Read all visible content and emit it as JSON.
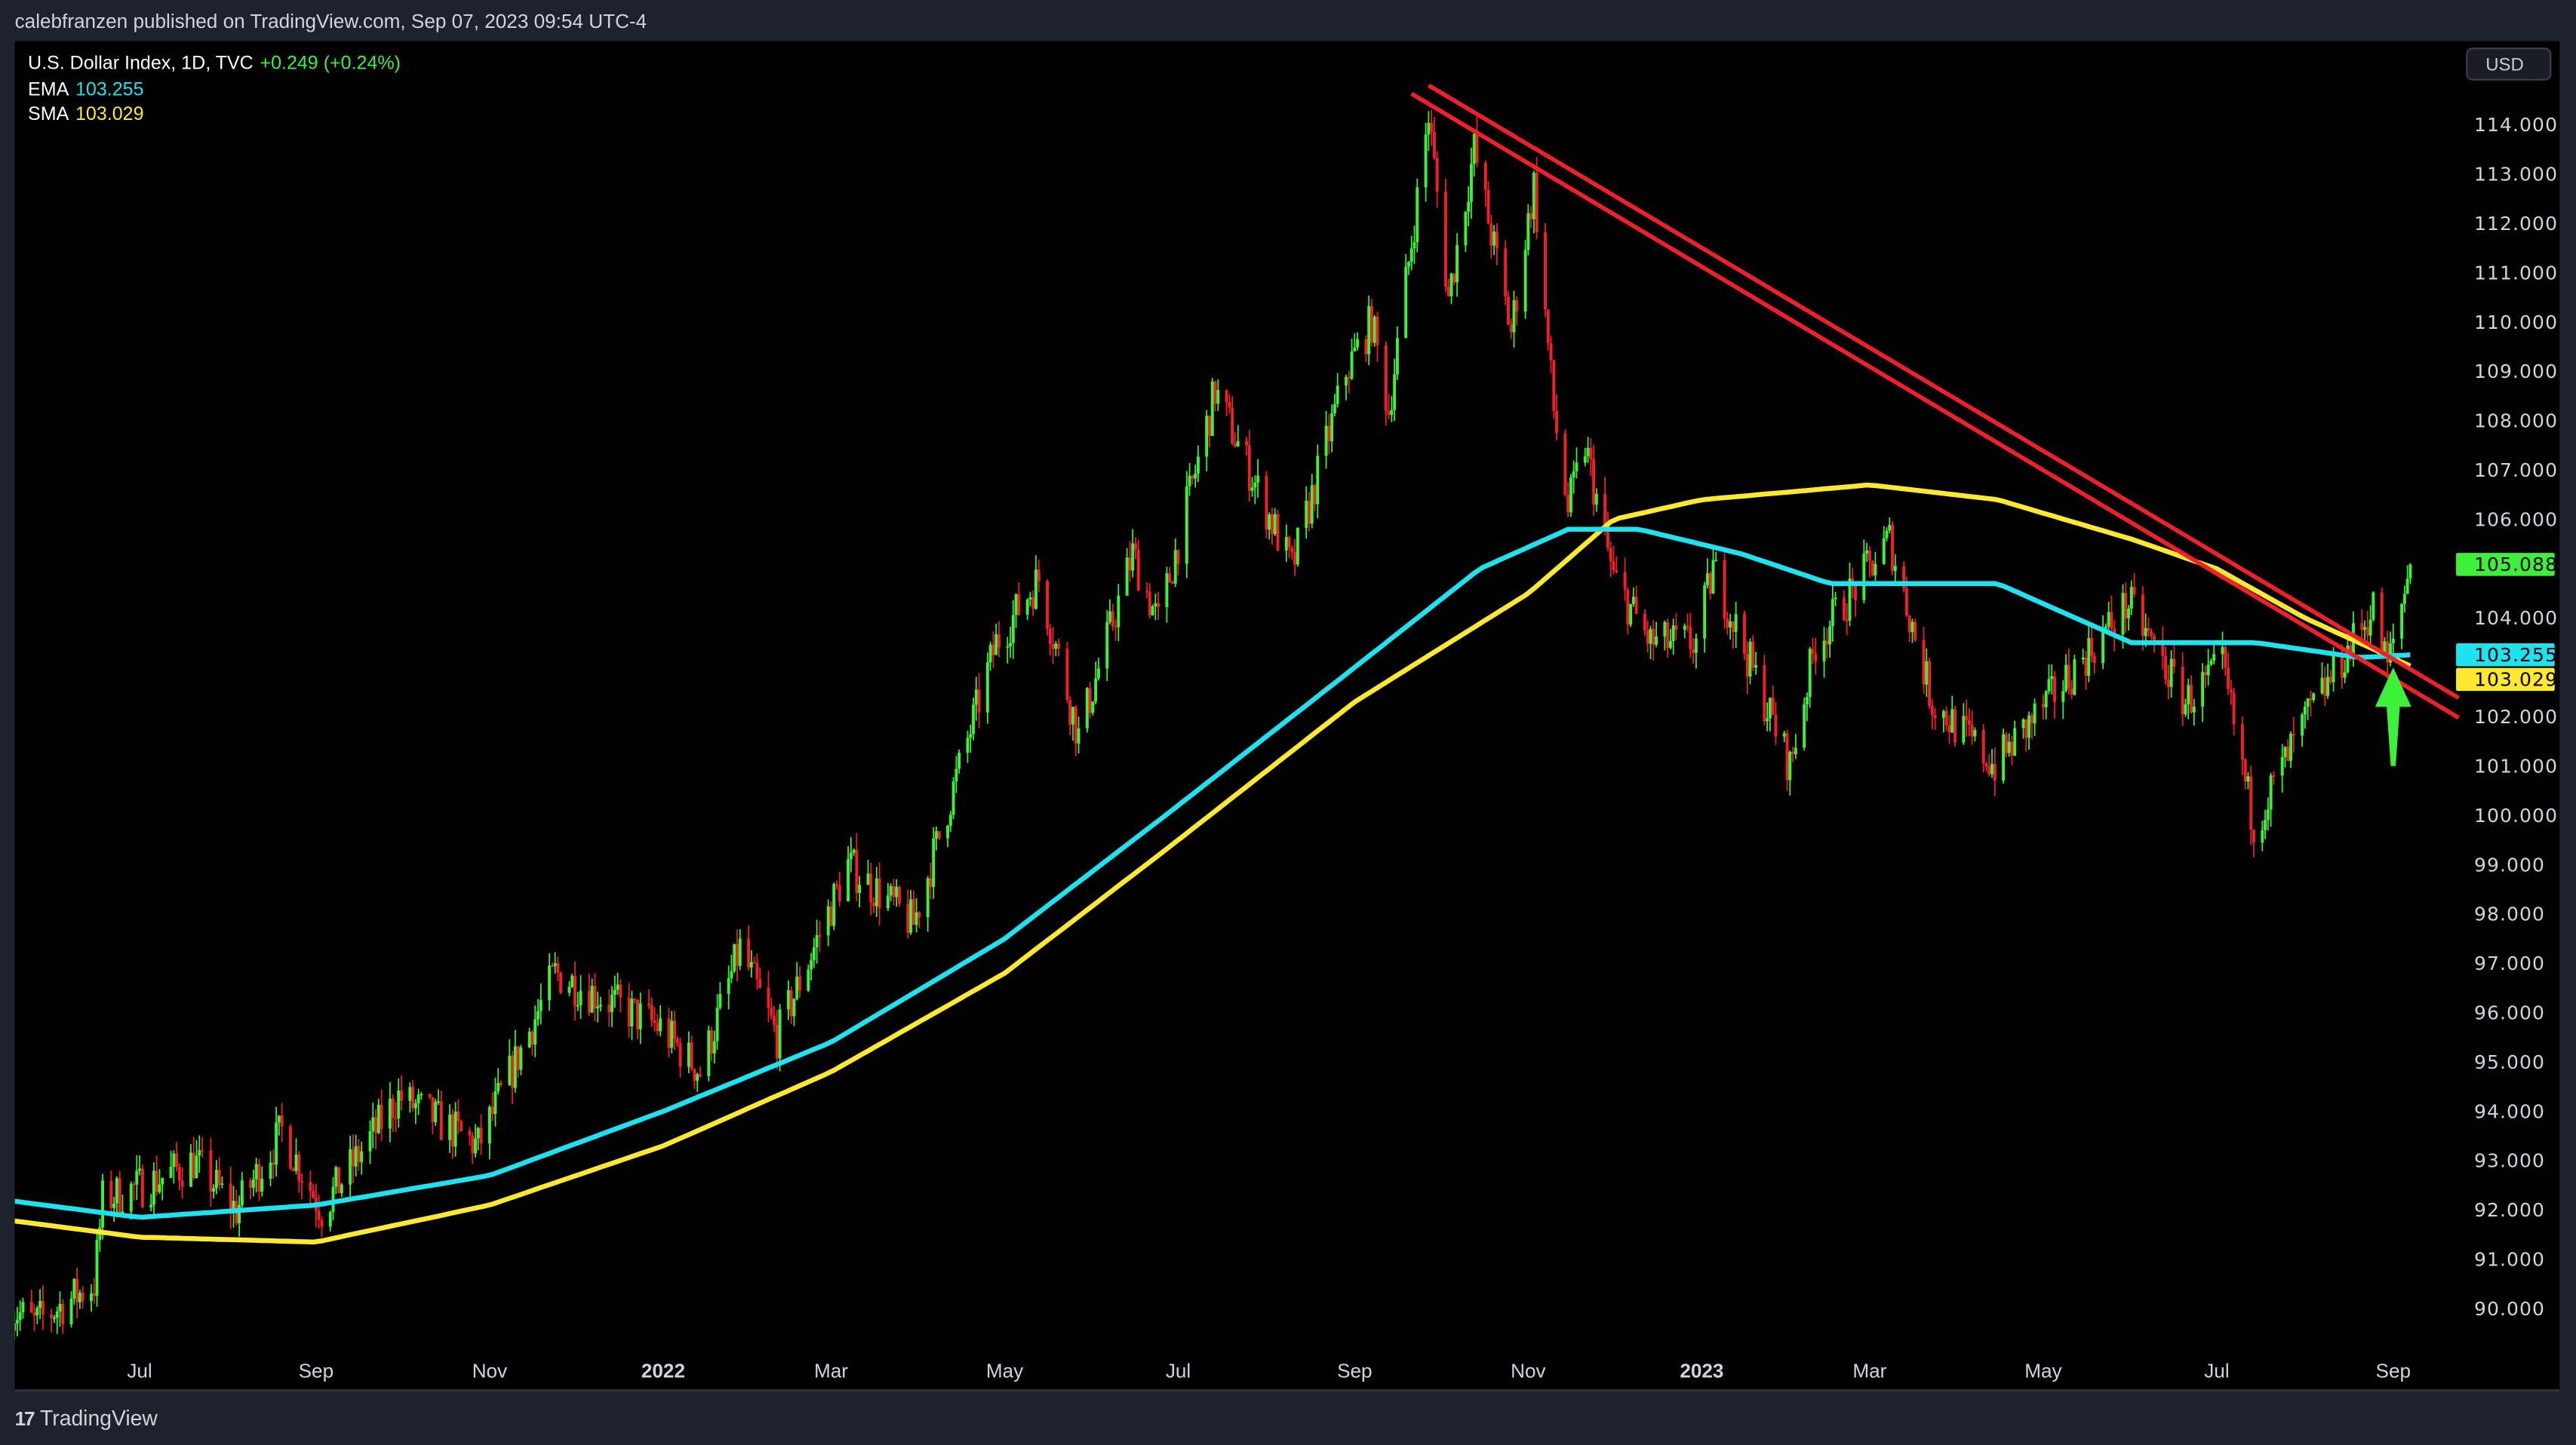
{
  "header": {
    "published": "calebfranzen published on TradingView.com, Sep 07, 2023 09:54 UTC-4"
  },
  "legend": {
    "symbol": "U.S. Dollar Index, 1D, TVC",
    "change": "+0.249 (+0.24%)",
    "ema_label": "EMA",
    "ema_value": "103.255",
    "sma_label": "SMA",
    "sma_value": "103.029"
  },
  "currency_button": "USD",
  "footer": {
    "brand": "TradingView"
  },
  "colors": {
    "up": "#3ef03a",
    "down": "#f0202a",
    "ema": "#1ee2f0",
    "sma": "#ffe930",
    "trendline": "#f0202a",
    "arrow": "#3ef03a",
    "background": "#000000"
  },
  "chart_data": {
    "type": "candlestick",
    "ylim": [
      89.5,
      114.9
    ],
    "grid": false,
    "y_ticks": [
      "114.000",
      "113.000",
      "112.000",
      "111.000",
      "110.000",
      "109.000",
      "108.000",
      "107.000",
      "106.000",
      "104.000",
      "102.000",
      "101.000",
      "100.000",
      "99.000",
      "98.000",
      "97.000",
      "96.000",
      "95.000",
      "94.000",
      "93.000",
      "92.000",
      "91.000",
      "90.000"
    ],
    "x_ticks": [
      {
        "label": "Jul",
        "date": "2021-07-01"
      },
      {
        "label": "Sep",
        "date": "2021-09-01"
      },
      {
        "label": "Nov",
        "date": "2021-11-01"
      },
      {
        "label": "2022",
        "date": "2022-01-01",
        "bold": true
      },
      {
        "label": "Mar",
        "date": "2022-03-01"
      },
      {
        "label": "May",
        "date": "2022-05-01"
      },
      {
        "label": "Jul",
        "date": "2022-07-01"
      },
      {
        "label": "Sep",
        "date": "2022-09-01"
      },
      {
        "label": "Nov",
        "date": "2022-11-01"
      },
      {
        "label": "2023",
        "date": "2023-01-01",
        "bold": true
      },
      {
        "label": "Mar",
        "date": "2023-03-01"
      },
      {
        "label": "May",
        "date": "2023-05-01"
      },
      {
        "label": "Jul",
        "date": "2023-07-01"
      },
      {
        "label": "Sep",
        "date": "2023-09-01"
      }
    ],
    "price_labels": [
      {
        "value": "105.088",
        "series": "price"
      },
      {
        "value": "103.255",
        "series": "ema"
      },
      {
        "value": "103.029",
        "series": "sma"
      }
    ],
    "close_path": [
      [
        "2021-05-17",
        90.0
      ],
      [
        "2021-05-25",
        89.7
      ],
      [
        "2021-06-15",
        90.5
      ],
      [
        "2021-06-18",
        92.2
      ],
      [
        "2021-07-07",
        92.6
      ],
      [
        "2021-07-20",
        93.0
      ],
      [
        "2021-08-04",
        92.0
      ],
      [
        "2021-08-20",
        93.6
      ],
      [
        "2021-09-03",
        92.0
      ],
      [
        "2021-09-30",
        94.3
      ],
      [
        "2021-10-28",
        93.3
      ],
      [
        "2021-11-24",
        96.8
      ],
      [
        "2021-12-31",
        95.7
      ],
      [
        "2022-01-14",
        94.8
      ],
      [
        "2022-01-28",
        97.3
      ],
      [
        "2022-02-10",
        95.5
      ],
      [
        "2022-03-07",
        99.0
      ],
      [
        "2022-03-30",
        97.8
      ],
      [
        "2022-04-28",
        103.5
      ],
      [
        "2022-05-13",
        104.8
      ],
      [
        "2022-05-27",
        101.6
      ],
      [
        "2022-06-15",
        105.3
      ],
      [
        "2022-06-24",
        103.9
      ],
      [
        "2022-07-14",
        108.6
      ],
      [
        "2022-08-10",
        105.0
      ],
      [
        "2022-08-29",
        109.0
      ],
      [
        "2022-09-07",
        110.0
      ],
      [
        "2022-09-13",
        108.2
      ],
      [
        "2022-09-27",
        114.2
      ],
      [
        "2022-10-04",
        110.5
      ],
      [
        "2022-10-13",
        113.5
      ],
      [
        "2022-10-26",
        109.8
      ],
      [
        "2022-11-03",
        112.8
      ],
      [
        "2022-11-10",
        108.2
      ],
      [
        "2022-11-15",
        106.2
      ],
      [
        "2022-11-21",
        107.5
      ],
      [
        "2022-12-01",
        104.8
      ],
      [
        "2022-12-14",
        103.5
      ],
      [
        "2022-12-30",
        103.5
      ],
      [
        "2023-01-05",
        105.0
      ],
      [
        "2023-02-01",
        101.0
      ],
      [
        "2023-02-10",
        103.5
      ],
      [
        "2023-03-08",
        105.6
      ],
      [
        "2023-03-23",
        102.3
      ],
      [
        "2023-04-14",
        101.0
      ],
      [
        "2023-05-31",
        104.3
      ],
      [
        "2023-06-20",
        102.3
      ],
      [
        "2023-07-03",
        103.0
      ],
      [
        "2023-07-14",
        99.8
      ],
      [
        "2023-08-02",
        102.0
      ],
      [
        "2023-08-25",
        104.2
      ],
      [
        "2023-08-30",
        103.0
      ],
      [
        "2023-09-07",
        105.088
      ]
    ],
    "ema_path": [
      [
        "2021-05-15",
        92.2
      ],
      [
        "2021-07-01",
        91.85
      ],
      [
        "2021-09-01",
        92.1
      ],
      [
        "2021-11-01",
        92.7
      ],
      [
        "2022-01-01",
        94.0
      ],
      [
        "2022-03-01",
        95.4
      ],
      [
        "2022-05-01",
        97.5
      ],
      [
        "2022-07-01",
        100.2
      ],
      [
        "2022-09-01",
        103.0
      ],
      [
        "2022-10-15",
        105.0
      ],
      [
        "2022-11-15",
        105.8
      ],
      [
        "2022-12-10",
        105.8
      ],
      [
        "2023-01-15",
        105.3
      ],
      [
        "2023-02-15",
        104.7
      ],
      [
        "2023-04-15",
        104.7
      ],
      [
        "2023-06-01",
        103.5
      ],
      [
        "2023-07-15",
        103.5
      ],
      [
        "2023-08-20",
        103.2
      ],
      [
        "2023-09-07",
        103.255
      ]
    ],
    "sma_path": [
      [
        "2021-05-15",
        91.8
      ],
      [
        "2021-07-01",
        91.45
      ],
      [
        "2021-09-01",
        91.35
      ],
      [
        "2021-11-01",
        92.1
      ],
      [
        "2022-01-01",
        93.3
      ],
      [
        "2022-03-01",
        94.8
      ],
      [
        "2022-05-01",
        96.8
      ],
      [
        "2022-07-01",
        99.5
      ],
      [
        "2022-09-01",
        102.3
      ],
      [
        "2022-11-01",
        104.5
      ],
      [
        "2022-12-01",
        106.0
      ],
      [
        "2023-01-01",
        106.4
      ],
      [
        "2023-03-01",
        106.7
      ],
      [
        "2023-04-15",
        106.4
      ],
      [
        "2023-06-01",
        105.6
      ],
      [
        "2023-07-01",
        105.0
      ],
      [
        "2023-08-01",
        104.0
      ],
      [
        "2023-09-07",
        103.029
      ]
    ],
    "trendlines": [
      [
        [
          "2022-09-21",
          114.63
        ],
        [
          "2023-09-24",
          101.98
        ]
      ],
      [
        [
          "2022-09-27",
          114.8
        ],
        [
          "2023-09-24",
          102.38
        ]
      ]
    ],
    "arrow": {
      "date": "2023-09-01",
      "from": 101.0,
      "to": 103.0
    }
  }
}
